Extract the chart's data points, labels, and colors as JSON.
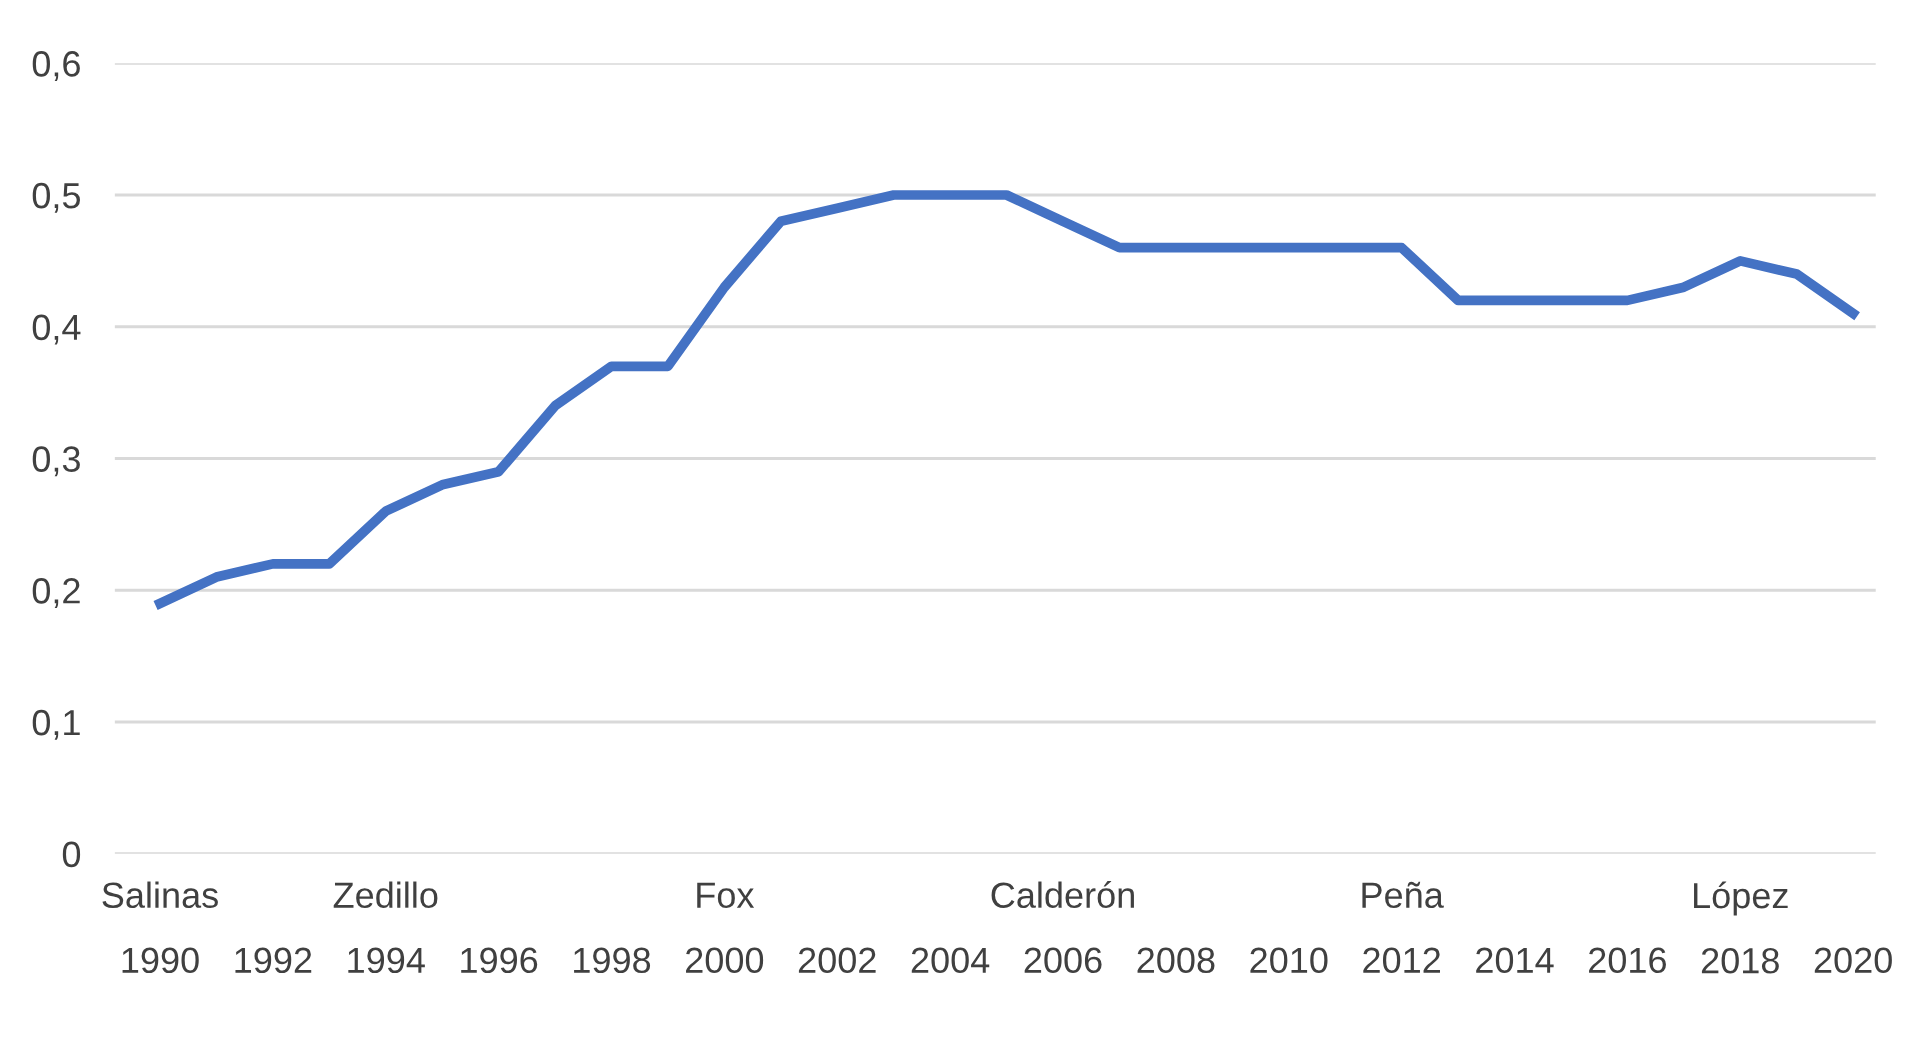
{
  "chart_data": {
    "type": "line",
    "categories": [
      "Salinas\n1990",
      null,
      "1992",
      null,
      "Zedillo\n1994",
      null,
      "1996",
      null,
      "1998",
      null,
      "Fox\n2000",
      null,
      "2002",
      null,
      "2004",
      null,
      "Calderón\n2006",
      null,
      "2008",
      null,
      "2010",
      null,
      "Peña\n2012",
      null,
      "2014",
      null,
      "2016",
      null,
      "López\n2018",
      null,
      "2020"
    ],
    "series": [
      {
        "color": "#4472c4",
        "values": [
          0.19,
          0.21,
          0.22,
          0.22,
          0.26,
          0.28,
          0.29,
          0.34,
          0.37,
          0.37,
          0.43,
          0.48,
          0.49,
          0.5,
          0.5,
          0.5,
          0.48,
          0.46,
          0.46,
          0.46,
          0.46,
          0.46,
          0.46,
          0.42,
          0.42,
          0.42,
          0.42,
          0.43,
          0.45,
          0.44,
          0.41
        ]
      }
    ],
    "ylim": [
      0,
      0.6
    ],
    "yticks": [
      0,
      {
        "value": 0.1,
        "label": "0,1"
      },
      {
        "value": 0.2,
        "label": "0,2"
      },
      {
        "value": 0.3,
        "label": "0,3"
      },
      {
        "value": 0.4,
        "label": "0,4"
      },
      {
        "value": 0.5,
        "label": "0,5"
      },
      {
        "value": 0.6,
        "label": "0,6"
      }
    ],
    "grid": "y",
    "marker": "none",
    "line_style": "solid"
  }
}
